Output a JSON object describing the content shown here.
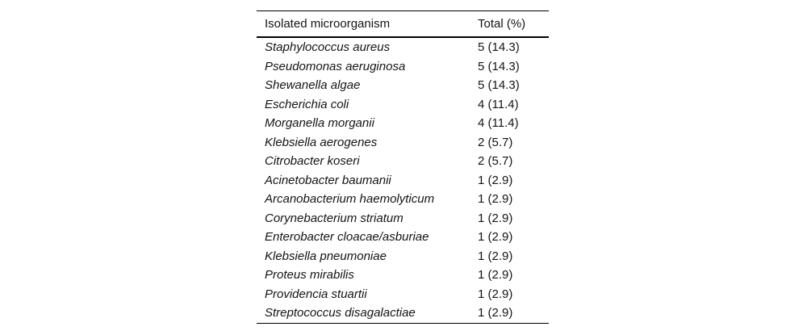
{
  "table": {
    "headers": {
      "organism": "Isolated microorganism",
      "total": "Total (%)"
    },
    "rows": [
      {
        "organism": "Staphylococcus aureus",
        "total": "5 (14.3)"
      },
      {
        "organism": "Pseudomonas aeruginosa",
        "total": "5 (14.3)"
      },
      {
        "organism": "Shewanella algae",
        "total": "5 (14.3)"
      },
      {
        "organism": "Escherichia coli",
        "total": "4 (11.4)"
      },
      {
        "organism": "Morganella morganii",
        "total": "4 (11.4)"
      },
      {
        "organism": "Klebsiella aerogenes",
        "total": "2 (5.7)"
      },
      {
        "organism": "Citrobacter koseri",
        "total": "2 (5.7)"
      },
      {
        "organism": "Acinetobacter baumanii",
        "total": "1 (2.9)"
      },
      {
        "organism": "Arcanobacterium haemolyticum",
        "total": "1 (2.9)"
      },
      {
        "organism": "Corynebacterium striatum",
        "total": "1 (2.9)"
      },
      {
        "organism": "Enterobacter cloacae/asburiae",
        "total": "1 (2.9)"
      },
      {
        "organism": "Klebsiella pneumoniae",
        "total": "1 (2.9)"
      },
      {
        "organism": "Proteus mirabilis",
        "total": "1 (2.9)"
      },
      {
        "organism": "Providencia stuartii",
        "total": "1 (2.9)"
      },
      {
        "organism": "Streptococcus disagalactiae",
        "total": "1 (2.9)"
      }
    ],
    "colors": {
      "text": "#141414",
      "rule": "#000000",
      "background": "#ffffff"
    }
  }
}
